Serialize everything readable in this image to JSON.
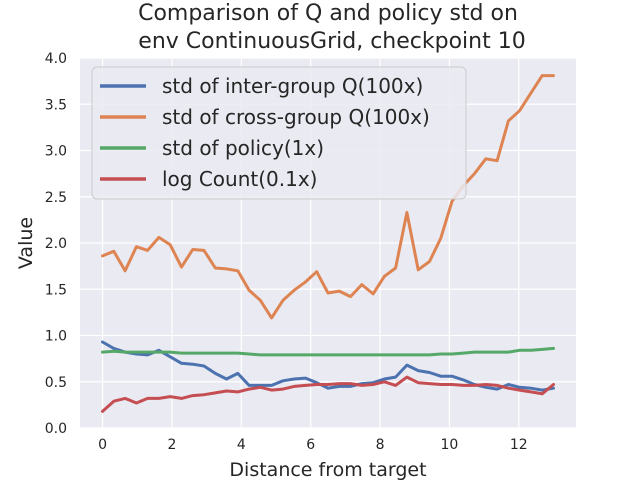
{
  "chart_data": {
    "type": "line",
    "title_lines": [
      "Comparison of Q and policy std on",
      "env ContinuousGrid, checkpoint 10"
    ],
    "xlabel": "Distance from target",
    "ylabel": "Value",
    "xlim": [
      -0.65,
      13.65
    ],
    "ylim": [
      0,
      4.0
    ],
    "xticks": [
      0,
      2,
      4,
      6,
      8,
      10,
      12
    ],
    "yticks": [
      0.0,
      0.5,
      1.0,
      1.5,
      2.0,
      2.5,
      3.0,
      3.5,
      4.0
    ],
    "ytick_labels": [
      "0.0",
      "0.5",
      "1.0",
      "1.5",
      "2.0",
      "2.5",
      "3.0",
      "3.5",
      "4.0"
    ],
    "grid": true,
    "background": "#eaeaf2",
    "legend_position": "top-left",
    "x": [
      0.0,
      0.325,
      0.65,
      0.975,
      1.3,
      1.625,
      1.95,
      2.275,
      2.6,
      2.925,
      3.25,
      3.575,
      3.9,
      4.225,
      4.55,
      4.875,
      5.2,
      5.525,
      5.85,
      6.175,
      6.5,
      6.825,
      7.15,
      7.475,
      7.8,
      8.125,
      8.45,
      8.775,
      9.1,
      9.425,
      9.75,
      10.075,
      10.4,
      10.725,
      11.05,
      11.375,
      11.7,
      12.025,
      12.35,
      12.675,
      13.0
    ],
    "series": [
      {
        "name": "std of inter-group Q(100x)",
        "color": "#4c72b0",
        "values": [
          0.93,
          0.86,
          0.82,
          0.8,
          0.79,
          0.84,
          0.77,
          0.7,
          0.69,
          0.67,
          0.59,
          0.53,
          0.59,
          0.46,
          0.46,
          0.46,
          0.51,
          0.53,
          0.54,
          0.49,
          0.43,
          0.45,
          0.45,
          0.48,
          0.49,
          0.53,
          0.55,
          0.68,
          0.62,
          0.6,
          0.56,
          0.56,
          0.52,
          0.47,
          0.44,
          0.42,
          0.47,
          0.44,
          0.43,
          0.41,
          0.43
        ]
      },
      {
        "name": "std of cross-group Q(100x)",
        "color": "#dd8452",
        "values": [
          1.86,
          1.91,
          1.7,
          1.96,
          1.92,
          2.06,
          1.98,
          1.74,
          1.93,
          1.92,
          1.73,
          1.72,
          1.7,
          1.49,
          1.38,
          1.19,
          1.38,
          1.49,
          1.58,
          1.69,
          1.46,
          1.48,
          1.42,
          1.55,
          1.45,
          1.64,
          1.73,
          2.33,
          1.71,
          1.8,
          2.05,
          2.45,
          2.62,
          2.75,
          2.91,
          2.89,
          3.32,
          3.43,
          3.62,
          3.81,
          3.81
        ]
      },
      {
        "name": "std of policy(1x)",
        "color": "#55a868",
        "values": [
          0.82,
          0.83,
          0.82,
          0.82,
          0.82,
          0.82,
          0.82,
          0.81,
          0.81,
          0.81,
          0.81,
          0.81,
          0.81,
          0.8,
          0.79,
          0.79,
          0.79,
          0.79,
          0.79,
          0.79,
          0.79,
          0.79,
          0.79,
          0.79,
          0.79,
          0.79,
          0.79,
          0.79,
          0.79,
          0.79,
          0.8,
          0.8,
          0.81,
          0.82,
          0.82,
          0.82,
          0.82,
          0.84,
          0.84,
          0.85,
          0.86
        ]
      },
      {
        "name": "log Count(0.1x)",
        "color": "#c44e52",
        "values": [
          0.18,
          0.29,
          0.32,
          0.27,
          0.32,
          0.32,
          0.34,
          0.32,
          0.35,
          0.36,
          0.38,
          0.4,
          0.39,
          0.42,
          0.44,
          0.41,
          0.42,
          0.45,
          0.46,
          0.47,
          0.47,
          0.48,
          0.48,
          0.46,
          0.47,
          0.5,
          0.46,
          0.55,
          0.49,
          0.48,
          0.47,
          0.47,
          0.46,
          0.46,
          0.47,
          0.46,
          0.43,
          0.41,
          0.39,
          0.37,
          0.47
        ]
      }
    ]
  }
}
